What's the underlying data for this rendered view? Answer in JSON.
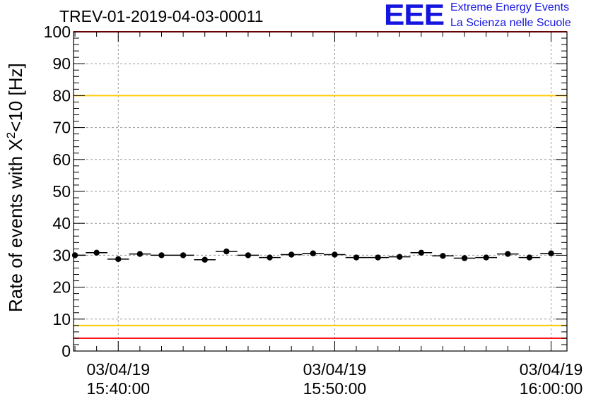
{
  "header": {
    "title": "TREV-01-2019-04-03-00011",
    "logo_mark": "EEE",
    "logo_line1": "Extreme Energy Events",
    "logo_line2": "La Scienza nelle Scuole"
  },
  "chart_data": {
    "type": "scatter",
    "title": "TREV-01-2019-04-03-00011",
    "xlabel": "",
    "ylabel": "Rate of events with X²<10 [Hz]",
    "ylabel_base": "Rate of events with X",
    "ylabel_sup": "2",
    "ylabel_tail": "<10 [Hz]",
    "ylim": [
      0,
      100
    ],
    "yticks": [
      0,
      10,
      20,
      30,
      40,
      50,
      60,
      70,
      80,
      90,
      100
    ],
    "xlim_minutes": [
      "15:37:56",
      "16:00:44"
    ],
    "x_unit": "time (03/04/19)",
    "xticks": [
      {
        "date": "03/04/19",
        "time": "15:40:00"
      },
      {
        "date": "03/04/19",
        "time": "15:50:00"
      },
      {
        "date": "03/04/19",
        "time": "16:00:00"
      }
    ],
    "grid": true,
    "reference_lines": [
      {
        "y": 100,
        "color": "#ff0000"
      },
      {
        "y": 80,
        "color": "#ffcc00"
      },
      {
        "y": 8,
        "color": "#ffcc00"
      },
      {
        "y": 4,
        "color": "#ff0000"
      }
    ],
    "marker_color": "#000000",
    "points": [
      {
        "t": "15:38:00",
        "y": 30.0
      },
      {
        "t": "15:39:00",
        "y": 30.8
      },
      {
        "t": "15:40:00",
        "y": 28.8
      },
      {
        "t": "15:41:00",
        "y": 30.4
      },
      {
        "t": "15:42:00",
        "y": 30.0
      },
      {
        "t": "15:43:00",
        "y": 30.0
      },
      {
        "t": "15:44:00",
        "y": 28.6
      },
      {
        "t": "15:45:00",
        "y": 31.2
      },
      {
        "t": "15:46:00",
        "y": 30.0
      },
      {
        "t": "15:47:00",
        "y": 29.3
      },
      {
        "t": "15:48:00",
        "y": 30.2
      },
      {
        "t": "15:49:00",
        "y": 30.6
      },
      {
        "t": "15:50:00",
        "y": 30.2
      },
      {
        "t": "15:51:00",
        "y": 29.3
      },
      {
        "t": "15:52:00",
        "y": 29.3
      },
      {
        "t": "15:53:00",
        "y": 29.5
      },
      {
        "t": "15:54:00",
        "y": 30.8
      },
      {
        "t": "15:55:00",
        "y": 29.8
      },
      {
        "t": "15:56:00",
        "y": 29.1
      },
      {
        "t": "15:57:00",
        "y": 29.3
      },
      {
        "t": "15:58:00",
        "y": 30.4
      },
      {
        "t": "15:59:00",
        "y": 29.3
      },
      {
        "t": "16:00:00",
        "y": 30.6
      }
    ]
  }
}
